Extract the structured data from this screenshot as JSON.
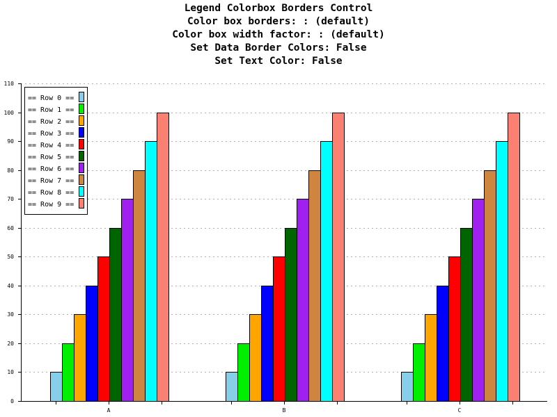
{
  "title_lines": [
    "Legend Colorbox Borders Control",
    "Color box borders: : (default)",
    "Color box width factor: : (default)",
    "Set Data Border Colors: False",
    "Set Text Color: False"
  ],
  "chart_data": {
    "type": "bar",
    "title": "Legend Colorbox Borders Control",
    "subtitle": [
      "Color box borders: : (default)",
      "Color box width factor: : (default)",
      "Set Data Border Colors: False",
      "Set Text Color: False"
    ],
    "categories": [
      "A",
      "B",
      "C"
    ],
    "xlabel": "",
    "ylabel": "",
    "ylim": [
      0,
      110
    ],
    "yticks": [
      0,
      10,
      20,
      30,
      40,
      50,
      60,
      70,
      80,
      90,
      100,
      110
    ],
    "grid": true,
    "legend_position": "top-left",
    "series": [
      {
        "name": "== Row 0 ==",
        "color": "#87ceeb",
        "values": [
          10,
          10,
          10
        ]
      },
      {
        "name": "== Row 1 ==",
        "color": "#00ee00",
        "values": [
          20,
          20,
          20
        ]
      },
      {
        "name": "== Row 2 ==",
        "color": "#ffa500",
        "values": [
          30,
          30,
          30
        ]
      },
      {
        "name": "== Row 3 ==",
        "color": "#0000ff",
        "values": [
          40,
          40,
          40
        ]
      },
      {
        "name": "== Row 4 ==",
        "color": "#ff0000",
        "values": [
          50,
          50,
          50
        ]
      },
      {
        "name": "== Row 5 ==",
        "color": "#006400",
        "values": [
          60,
          60,
          60
        ]
      },
      {
        "name": "== Row 6 ==",
        "color": "#a020f0",
        "values": [
          70,
          70,
          70
        ]
      },
      {
        "name": "== Row 7 ==",
        "color": "#cd853f",
        "values": [
          80,
          80,
          80
        ]
      },
      {
        "name": "== Row 8 ==",
        "color": "#00ffff",
        "values": [
          90,
          90,
          90
        ]
      },
      {
        "name": "== Row 9 ==",
        "color": "#fa8072",
        "values": [
          100,
          100,
          100
        ]
      }
    ]
  }
}
